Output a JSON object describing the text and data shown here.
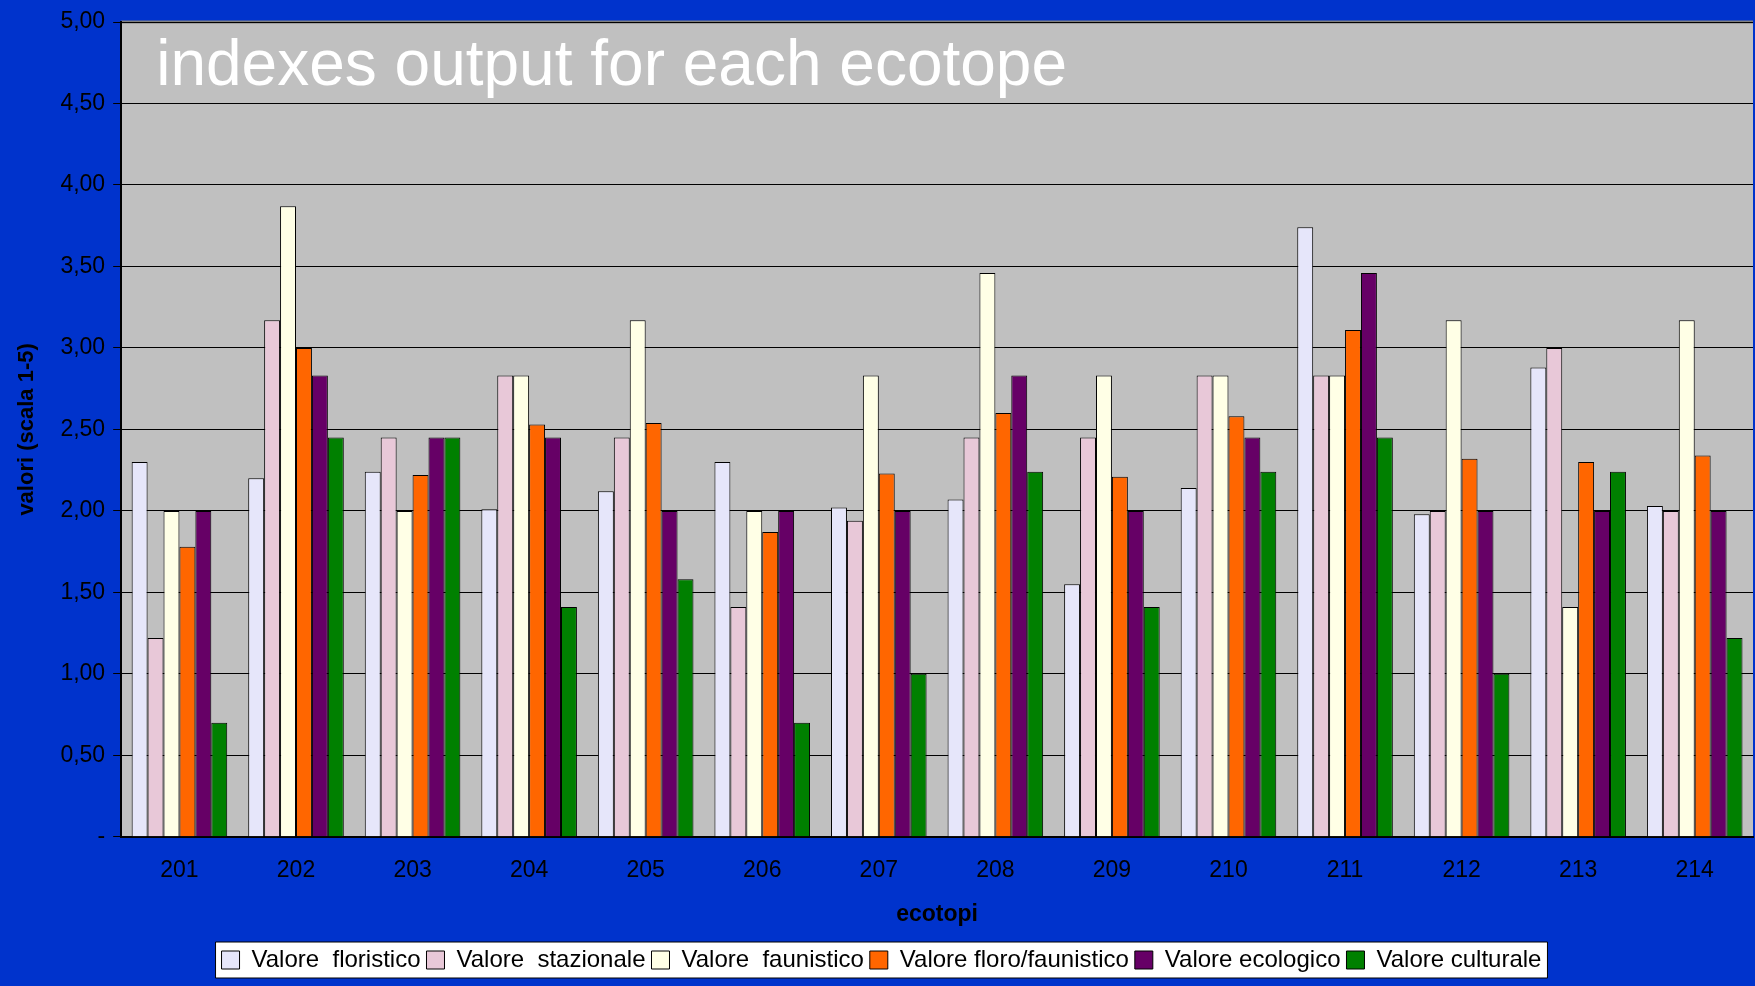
{
  "chart_data": {
    "type": "bar",
    "title": "indexes output for each ecotope",
    "xlabel": "ecotopi",
    "ylabel": "valori (scala 1-5)",
    "categories": [
      "201",
      "202",
      "203",
      "204",
      "205",
      "206",
      "207",
      "208",
      "209",
      "210",
      "211",
      "212",
      "213",
      "214"
    ],
    "series": [
      {
        "name": "Valore  floristico",
        "color": "#e6e6fa",
        "values": [
          2.3,
          2.2,
          2.24,
          2.01,
          2.12,
          2.3,
          2.02,
          2.07,
          1.55,
          2.14,
          3.74,
          1.98,
          2.88,
          2.03
        ]
      },
      {
        "name": "Valore  stazionale",
        "color": "#e8c8d8",
        "values": [
          1.22,
          3.17,
          2.45,
          2.83,
          2.45,
          1.41,
          1.94,
          2.45,
          2.45,
          2.83,
          2.83,
          2.0,
          3.0,
          2.0
        ]
      },
      {
        "name": "Valore  faunistico",
        "color": "#ffffe6",
        "values": [
          2.0,
          3.87,
          2.0,
          2.83,
          3.17,
          2.0,
          2.83,
          3.46,
          2.83,
          2.83,
          2.83,
          3.17,
          1.41,
          3.17
        ]
      },
      {
        "name": "Valore floro/faunistico",
        "color": "#ff6600",
        "values": [
          1.78,
          3.0,
          2.22,
          2.53,
          2.54,
          1.87,
          2.23,
          2.6,
          2.21,
          2.58,
          3.11,
          2.32,
          2.3,
          2.34
        ]
      },
      {
        "name": "Valore ecologico",
        "color": "#660066",
        "values": [
          2.0,
          2.83,
          2.45,
          2.45,
          2.0,
          2.0,
          2.0,
          2.83,
          2.0,
          2.45,
          3.46,
          2.0,
          2.0,
          2.0
        ]
      },
      {
        "name": "Valore culturale",
        "color": "#008000",
        "values": [
          0.7,
          2.45,
          2.45,
          1.41,
          1.58,
          0.7,
          1.0,
          2.24,
          1.41,
          2.24,
          2.45,
          1.0,
          2.24,
          1.22
        ]
      }
    ],
    "ylim": [
      0,
      5
    ],
    "yticks": [
      {
        "value": 0,
        "label": "-"
      },
      {
        "value": 0.5,
        "label": "0,50"
      },
      {
        "value": 1,
        "label": "1,00"
      },
      {
        "value": 1.5,
        "label": "1,50"
      },
      {
        "value": 2,
        "label": "2,00"
      },
      {
        "value": 2.5,
        "label": "2,50"
      },
      {
        "value": 3,
        "label": "3,00"
      },
      {
        "value": 3.5,
        "label": "3,50"
      },
      {
        "value": 4,
        "label": "4,00"
      },
      {
        "value": 4.5,
        "label": "4,50"
      },
      {
        "value": 5,
        "label": "5,00"
      }
    ],
    "grid": "y",
    "legend": "bottom"
  }
}
